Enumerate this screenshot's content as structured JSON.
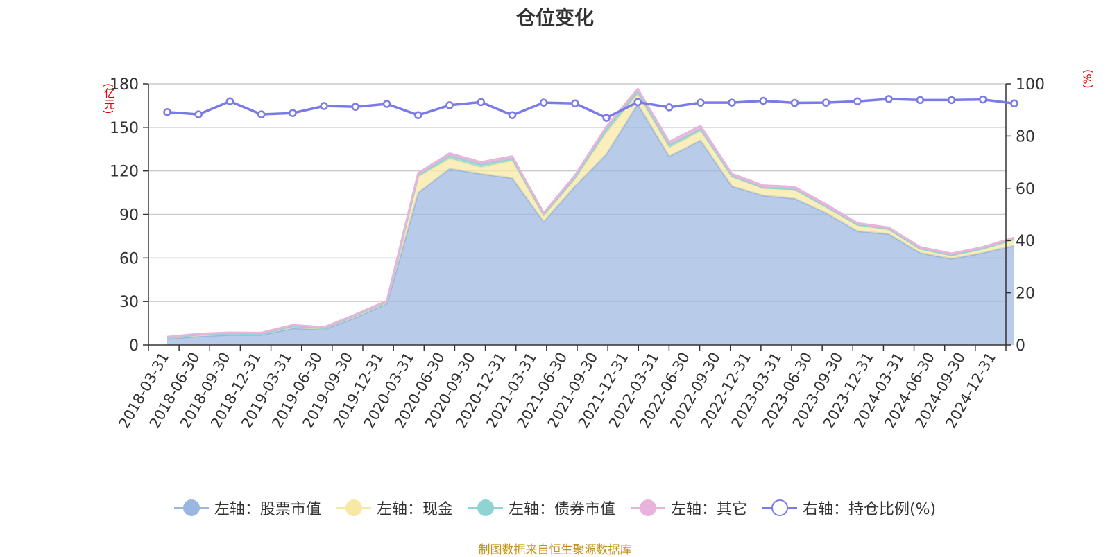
{
  "title": "仓位变化",
  "source": "制图数据来自恒生聚源数据库",
  "chart_data": {
    "type": "area",
    "title": "仓位变化",
    "categories": [
      "2018-03-31",
      "2018-06-30",
      "2018-09-30",
      "2018-12-31",
      "2019-03-31",
      "2019-06-30",
      "2019-09-30",
      "2019-12-31",
      "2020-03-31",
      "2020-06-30",
      "2020-09-30",
      "2020-12-31",
      "2021-03-31",
      "2021-06-30",
      "2021-09-30",
      "2021-12-31",
      "2022-03-31",
      "2022-06-30",
      "2022-09-30",
      "2022-12-31",
      "2023-03-31",
      "2023-06-30",
      "2023-09-30",
      "2023-12-31",
      "2024-03-31",
      "2024-06-30",
      "2024-09-30",
      "2024-12-31"
    ],
    "left_axis": {
      "unit": "(亿元)",
      "ylim": [
        0,
        180
      ],
      "ticks": [
        0,
        30,
        60,
        90,
        120,
        150,
        180
      ]
    },
    "right_axis": {
      "unit": "(%)",
      "ylim": [
        0,
        100
      ],
      "ticks": [
        0,
        20,
        40,
        60,
        80,
        100
      ]
    },
    "grid": true,
    "legend_position": "bottom",
    "series": [
      {
        "name": "左轴：股票市值",
        "axis": "left",
        "stack": true,
        "color": "#9ab7e1",
        "values": [
          4.2,
          6.0,
          7.0,
          7.0,
          11.5,
          10.7,
          19.0,
          28.5,
          105.0,
          121.5,
          118.0,
          115.0,
          85.0,
          109.5,
          131.5,
          166.0,
          130.0,
          141.0,
          109.5,
          103.0,
          101.0,
          91.0,
          78.5,
          76.5,
          63.5,
          59.5,
          63.5,
          68.5
        ]
      },
      {
        "name": "左轴：现金",
        "axis": "left",
        "stack": true,
        "color": "#f8e8a6",
        "values": [
          0.8,
          1.2,
          1.0,
          0.8,
          1.5,
          0.9,
          1.5,
          1.3,
          11.0,
          7.0,
          4.5,
          12.0,
          4.0,
          5.0,
          15.0,
          7.0,
          6.0,
          6.5,
          6.5,
          5.0,
          6.0,
          4.0,
          4.0,
          3.0,
          2.5,
          2.0,
          2.5,
          4.0
        ]
      },
      {
        "name": "左轴：债券市值",
        "axis": "left",
        "stack": true,
        "color": "#8fd3d3",
        "values": [
          0,
          0,
          0,
          0,
          0,
          0,
          0,
          0,
          1.0,
          2.0,
          2.0,
          1.5,
          1.0,
          1.0,
          2.5,
          2.0,
          2.0,
          1.5,
          0.5,
          0.5,
          0.5,
          0.5,
          0.5,
          0.5,
          0.5,
          0.5,
          0.5,
          0.5
        ]
      },
      {
        "name": "左轴：其它",
        "axis": "left",
        "stack": true,
        "color": "#e8b4dc",
        "values": [
          0.6,
          0.6,
          0.6,
          0.6,
          0.8,
          0.6,
          0.5,
          0.6,
          1.5,
          1.5,
          1.5,
          1.5,
          1.0,
          1.5,
          1.5,
          1.5,
          2.0,
          2.0,
          1.5,
          1.5,
          1.5,
          1.5,
          1.0,
          1.0,
          1.0,
          1.0,
          1.0,
          1.0
        ]
      },
      {
        "name": "右轴：持仓比例(%)",
        "axis": "right",
        "stack": false,
        "color": "#7a7ae8",
        "values": [
          89.2,
          88.3,
          93.3,
          88.3,
          88.8,
          91.5,
          91.2,
          92.3,
          88.0,
          91.8,
          93.0,
          88.0,
          92.8,
          92.5,
          87.0,
          93.0,
          91.0,
          92.8,
          92.8,
          93.5,
          92.7,
          92.8,
          93.3,
          94.2,
          93.8,
          93.8,
          94.0,
          92.5
        ]
      }
    ]
  }
}
